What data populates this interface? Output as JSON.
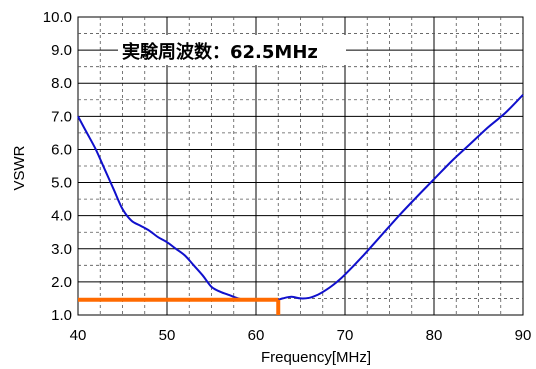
{
  "chart_data": {
    "type": "line",
    "title": "",
    "xlabel": "Frequency[MHz]",
    "ylabel": "VSWR",
    "xlim": [
      40,
      90
    ],
    "ylim": [
      1.0,
      10.0
    ],
    "x_ticks": [
      "40",
      "50",
      "60",
      "70",
      "80",
      "90"
    ],
    "y_ticks": [
      "1.0",
      "2.0",
      "3.0",
      "4.0",
      "5.0",
      "6.0",
      "7.0",
      "8.0",
      "9.0",
      "10.0"
    ],
    "grid": true,
    "legend": "none",
    "annotation": "実験周波数：62.5MHz",
    "series": [
      {
        "color": "#1010cc",
        "x": [
          40,
          41,
          42,
          43,
          44,
          45,
          46,
          47,
          48,
          49,
          50,
          51,
          52,
          53,
          54,
          55,
          56,
          57,
          58,
          59,
          60,
          61,
          62,
          62.5,
          63,
          64,
          65,
          66,
          67,
          68,
          69,
          70,
          72,
          74,
          76,
          78,
          80,
          82,
          84,
          86,
          88,
          90
        ],
        "y": [
          7.0,
          6.5,
          6.0,
          5.4,
          4.8,
          4.2,
          3.85,
          3.7,
          3.55,
          3.35,
          3.2,
          3.0,
          2.8,
          2.5,
          2.2,
          1.85,
          1.7,
          1.6,
          1.5,
          1.45,
          1.44,
          1.44,
          1.45,
          1.46,
          1.5,
          1.55,
          1.5,
          1.52,
          1.62,
          1.78,
          1.98,
          2.22,
          2.78,
          3.38,
          3.98,
          4.55,
          5.1,
          5.65,
          6.15,
          6.65,
          7.1,
          7.65
        ]
      }
    ],
    "marker": {
      "color": "#ff6a00",
      "frequency": 62.5,
      "vswr": 1.46
    }
  }
}
